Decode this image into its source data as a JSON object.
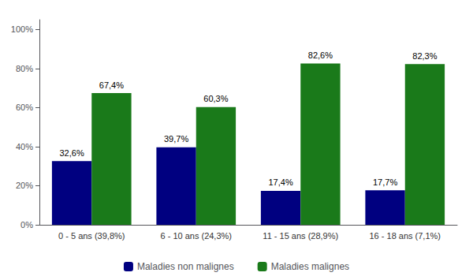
{
  "chart_data": {
    "type": "bar",
    "categories": [
      "0 - 5 ans (39,8%)",
      "6 - 10 ans (24,3%)",
      "11 - 15 ans (28,9%)",
      "16 - 18 ans (7,1%)"
    ],
    "series": [
      {
        "name": "Maladies non malignes",
        "color": "#000080",
        "values": [
          32.6,
          39.7,
          17.4,
          17.7
        ],
        "value_labels": [
          "32,6%",
          "39,7%",
          "17,4%",
          "17,7%"
        ]
      },
      {
        "name": "Maladies malignes",
        "color": "#1a7a1a",
        "values": [
          67.4,
          60.3,
          82.6,
          82.3
        ],
        "value_labels": [
          "67,4%",
          "60,3%",
          "82,6%",
          "82,3%"
        ]
      }
    ],
    "ylim": [
      0,
      105
    ],
    "yticks": [
      {
        "value": 0,
        "label": "0%"
      },
      {
        "value": 20,
        "label": "20%"
      },
      {
        "value": 40,
        "label": "40%"
      },
      {
        "value": 60,
        "label": "60%"
      },
      {
        "value": 80,
        "label": "80%"
      },
      {
        "value": 100,
        "label": "100%"
      }
    ],
    "grid": false,
    "legend": "bottom",
    "data_labels": true
  }
}
